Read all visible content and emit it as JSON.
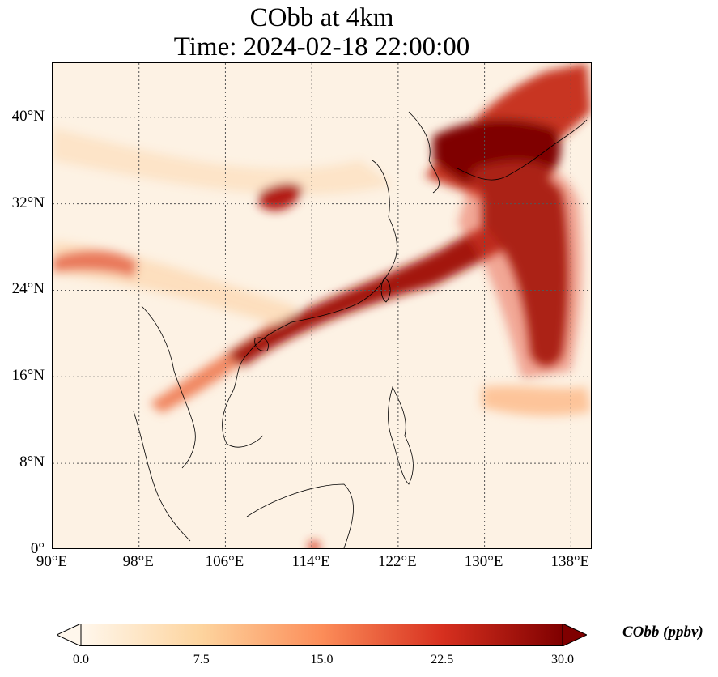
{
  "title": {
    "line1": "CObb at 4km",
    "line2": "Time: 2024-02-18 22:00:00"
  },
  "map": {
    "lon_range": [
      90,
      140
    ],
    "lat_range": [
      0,
      45
    ],
    "lat_ticks": [
      {
        "value": 40,
        "label": "40°N"
      },
      {
        "value": 32,
        "label": "32°N"
      },
      {
        "value": 24,
        "label": "24°N"
      },
      {
        "value": 16,
        "label": "16°N"
      },
      {
        "value": 8,
        "label": "8°N"
      },
      {
        "value": 0,
        "label": "0°"
      }
    ],
    "lon_ticks": [
      {
        "value": 90,
        "label": "90°E"
      },
      {
        "value": 98,
        "label": "98°E"
      },
      {
        "value": 106,
        "label": "106°E"
      },
      {
        "value": 114,
        "label": "114°E"
      },
      {
        "value": 122,
        "label": "122°E"
      },
      {
        "value": 130,
        "label": "130°E"
      },
      {
        "value": 138,
        "label": "138°E"
      }
    ],
    "grid": true,
    "colormap": "OrRd"
  },
  "colorbar": {
    "label": "CObb (ppbv)",
    "min": 0,
    "max": 30,
    "extend": "both",
    "ticks": [
      {
        "value": 0,
        "label": "0.0"
      },
      {
        "value": 7.5,
        "label": "7.5"
      },
      {
        "value": 15,
        "label": "15.0"
      },
      {
        "value": 22.5,
        "label": "22.5"
      },
      {
        "value": 30,
        "label": "30.0"
      }
    ],
    "colors": [
      "#fff7ec",
      "#fdd49e",
      "#fc8d59",
      "#d7301f",
      "#7f0000"
    ]
  }
}
